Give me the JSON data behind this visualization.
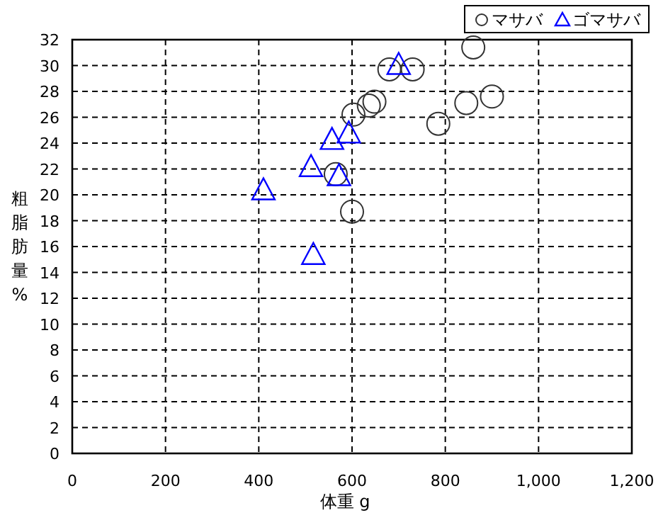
{
  "chart_data": {
    "type": "scatter",
    "xlabel": "体重 g",
    "ylabel": "粗脂肪量%",
    "xlim": [
      0,
      1200
    ],
    "ylim": [
      0,
      32
    ],
    "xticks": [
      0,
      200,
      400,
      600,
      800,
      {
        "value": 1000,
        "label": "1,000"
      },
      {
        "value": 1200,
        "label": "1,200"
      }
    ],
    "yticks": [
      0,
      2,
      4,
      6,
      8,
      10,
      12,
      14,
      16,
      18,
      20,
      22,
      24,
      26,
      28,
      30,
      32
    ],
    "grid": true,
    "legend": "top right",
    "series": [
      {
        "name": "マサバ",
        "color": "#333333",
        "marker": "circle",
        "x": [
          860,
          680,
          730,
          636,
          648,
          603,
          845,
          900,
          785,
          565,
          600
        ],
        "values": [
          31.4,
          29.7,
          29.7,
          26.9,
          27.2,
          26.2,
          27.1,
          27.6,
          25.5,
          21.6,
          18.7
        ]
      },
      {
        "name": "ゴマサバ",
        "color": "#0000ff",
        "marker": "triangle",
        "x": [
          700,
          557,
          593,
          512,
          572,
          410,
          517
        ],
        "values": [
          30.0,
          24.2,
          24.7,
          22.1,
          21.4,
          20.3,
          15.3
        ]
      }
    ]
  }
}
